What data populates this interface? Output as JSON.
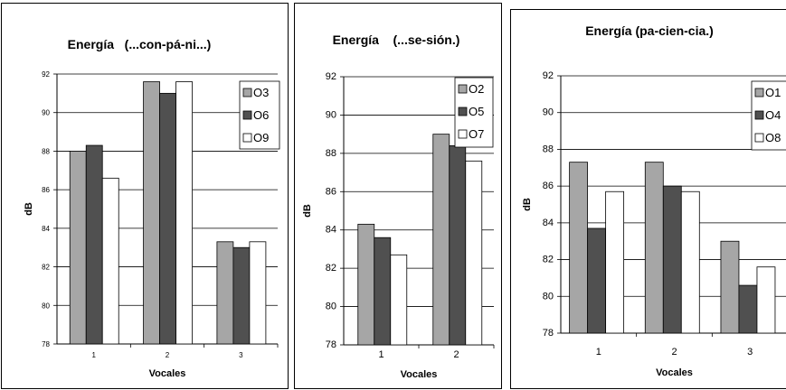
{
  "chart_data": [
    {
      "type": "bar",
      "title": "Energía   (...con-pá-ni...)",
      "xlabel": "Vocales",
      "ylabel": "dB",
      "ylim": [
        78,
        92
      ],
      "yticks": [
        "78",
        "80",
        "82",
        "84",
        "86",
        "88",
        "90",
        "92"
      ],
      "categories": [
        "1",
        "2",
        "3"
      ],
      "grid": true,
      "legend_position": "top-right",
      "series": [
        {
          "name": "O3",
          "color": "#a6a6a6",
          "values": [
            88.0,
            91.6,
            83.3
          ]
        },
        {
          "name": "O6",
          "color": "#505050",
          "values": [
            88.3,
            91.0,
            83.0
          ]
        },
        {
          "name": "O9",
          "color": "#ffffff",
          "values": [
            86.6,
            91.6,
            83.3
          ]
        }
      ]
    },
    {
      "type": "bar",
      "title": "Energía    (...se-sión.)",
      "xlabel": "Vocales",
      "ylabel": "dB",
      "ylim": [
        78,
        92
      ],
      "yticks": [
        "78",
        "80",
        "82",
        "84",
        "86",
        "88",
        "90",
        "92"
      ],
      "categories": [
        "1",
        "2"
      ],
      "grid": true,
      "legend_position": "top-right",
      "series": [
        {
          "name": "O2",
          "color": "#a6a6a6",
          "values": [
            84.3,
            89.0
          ]
        },
        {
          "name": "O5",
          "color": "#505050",
          "values": [
            83.6,
            88.4
          ]
        },
        {
          "name": "O7",
          "color": "#ffffff",
          "values": [
            82.7,
            87.6
          ]
        }
      ]
    },
    {
      "type": "bar",
      "title": "Energía (pa-cien-cia.)",
      "xlabel": "Vocales",
      "ylabel": "dB",
      "ylim": [
        78,
        92
      ],
      "yticks": [
        "78",
        "80",
        "82",
        "84",
        "86",
        "88",
        "90",
        "92"
      ],
      "categories": [
        "1",
        "2",
        "3"
      ],
      "grid": true,
      "legend_position": "top-right",
      "series": [
        {
          "name": "O1",
          "color": "#a6a6a6",
          "values": [
            87.3,
            87.3,
            83.0
          ]
        },
        {
          "name": "O4",
          "color": "#505050",
          "values": [
            83.7,
            86.0,
            80.6
          ]
        },
        {
          "name": "O8",
          "color": "#ffffff",
          "values": [
            85.7,
            85.7,
            81.6
          ]
        }
      ]
    }
  ]
}
